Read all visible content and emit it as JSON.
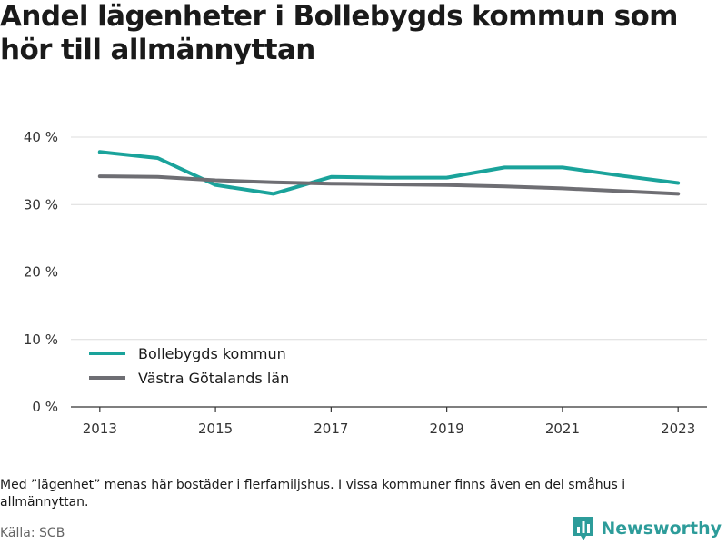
{
  "title": "Andel lägenheter i Bollebygds kommun som hör till allmännyttan",
  "note": "Med ”lägenhet” menas här bostäder i flerfamiljshus. I vissa kommuner finns även en del småhus i allmännyttan.",
  "source": "Källa: SCB",
  "brand": {
    "name": "Newsworthy",
    "logo_icon": "bar-chart-logo-icon",
    "color": "#2d9c9a"
  },
  "chart_data": {
    "type": "line",
    "title": "Andel lägenheter i Bollebygds kommun som hör till allmännyttan",
    "x": [
      2013,
      2014,
      2015,
      2016,
      2017,
      2018,
      2019,
      2020,
      2021,
      2022,
      2023
    ],
    "x_ticks": [
      "2013",
      "2015",
      "2017",
      "2019",
      "2021",
      "2023"
    ],
    "y_ticks": [
      {
        "value": 0,
        "label": "0 %"
      },
      {
        "value": 10,
        "label": "10 %"
      },
      {
        "value": 20,
        "label": "20 %"
      },
      {
        "value": 30,
        "label": "30 %"
      },
      {
        "value": 40,
        "label": "40 %"
      }
    ],
    "ylim": [
      0,
      40
    ],
    "grid": true,
    "legend_position": "bottom-left",
    "series": [
      {
        "name": "Bollebygds kommun",
        "color": "#1aa39b",
        "values": [
          37.8,
          36.9,
          32.9,
          31.6,
          34.1,
          34.0,
          34.0,
          35.5,
          35.5,
          34.3,
          33.2
        ]
      },
      {
        "name": "Västra Götalands län",
        "color": "#6e6e73",
        "values": [
          34.2,
          34.1,
          33.6,
          33.3,
          33.1,
          33.0,
          32.9,
          32.7,
          32.4,
          32.0,
          31.6
        ]
      }
    ]
  }
}
